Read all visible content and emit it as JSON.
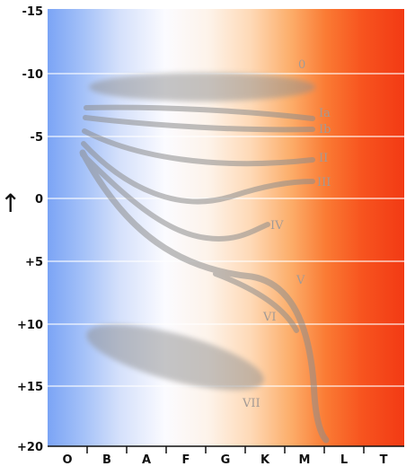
{
  "y_axis": {
    "ticks": [
      "-15",
      "-10",
      "-5",
      "0",
      "+5",
      "+10",
      "+15",
      "+20"
    ],
    "arrow": "↑"
  },
  "x_axis": {
    "ticks": [
      "O",
      "B",
      "A",
      "F",
      "G",
      "K",
      "M",
      "L",
      "T"
    ]
  },
  "luminosity_classes": [
    "0",
    "Ia",
    "Ib",
    "II",
    "III",
    "IV",
    "V",
    "VI",
    "VII"
  ],
  "colors": {
    "blue_side": "#7ca6f5",
    "white_mid": "#fbfbff",
    "orange": "#fb9a3c",
    "red_side": "#f7421c",
    "band": "#8d8d8d",
    "label": "#a39a95"
  }
}
